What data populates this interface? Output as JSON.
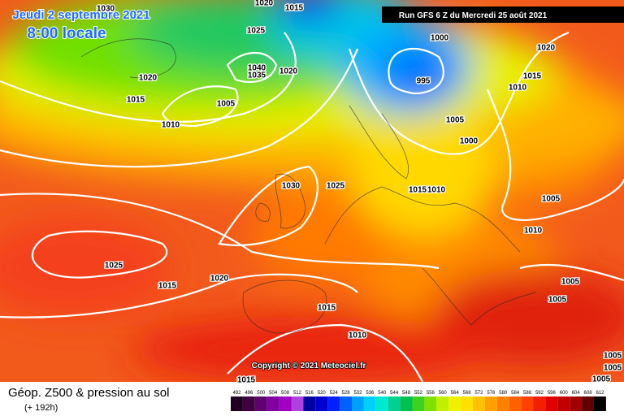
{
  "header": {
    "date": "Jeudi 2 septembre 2021",
    "time": "8:00 locale",
    "run": "Run GFS 6 Z du Mercredi 25 août 2021"
  },
  "isobar_labels": [
    "1030",
    "1020",
    "1015",
    "1025",
    "1040",
    "1035",
    "1020",
    "1020",
    "1015",
    "1005",
    "1010",
    "1000",
    "995",
    "1005",
    "1000",
    "1020",
    "1015",
    "1010",
    "1030",
    "1025",
    "1015",
    "1010",
    "1005",
    "1010",
    "1025",
    "1015",
    "1020",
    "1015",
    "1005",
    "1005",
    "1010",
    "1015",
    "1005",
    "1005",
    "1005"
  ],
  "copyright": "Copyright © 2021 Meteociel.fr",
  "footer": {
    "title": "Géop. Z500 & pression au sol",
    "subtitle": "(+ 192h)"
  },
  "legend": [
    {
      "value": 492,
      "color": "#200020"
    },
    {
      "value": 496,
      "color": "#400040"
    },
    {
      "value": 500,
      "color": "#600070"
    },
    {
      "value": 504,
      "color": "#8000a0"
    },
    {
      "value": 508,
      "color": "#a000c0"
    },
    {
      "value": 512,
      "color": "#b040e0"
    },
    {
      "value": 516,
      "color": "#0000a0"
    },
    {
      "value": 520,
      "color": "#0000d0"
    },
    {
      "value": 524,
      "color": "#0020ff"
    },
    {
      "value": 528,
      "color": "#0060ff"
    },
    {
      "value": 532,
      "color": "#00a0ff"
    },
    {
      "value": 536,
      "color": "#00d0ff"
    },
    {
      "value": 540,
      "color": "#00e8d0"
    },
    {
      "value": 544,
      "color": "#00d090"
    },
    {
      "value": 548,
      "color": "#00c050"
    },
    {
      "value": 552,
      "color": "#40d020"
    },
    {
      "value": 556,
      "color": "#80e000"
    },
    {
      "value": 560,
      "color": "#c0f000"
    },
    {
      "value": 564,
      "color": "#f0f000"
    },
    {
      "value": 568,
      "color": "#ffe000"
    },
    {
      "value": 572,
      "color": "#ffc000"
    },
    {
      "value": 576,
      "color": "#ffa000"
    },
    {
      "value": 580,
      "color": "#ff8000"
    },
    {
      "value": 584,
      "color": "#ff6000"
    },
    {
      "value": 588,
      "color": "#ff4000"
    },
    {
      "value": 592,
      "color": "#f02000"
    },
    {
      "value": 596,
      "color": "#e00000"
    },
    {
      "value": 600,
      "color": "#c00000"
    },
    {
      "value": 604,
      "color": "#a00000"
    },
    {
      "value": 608,
      "color": "#600000"
    },
    {
      "value": 612,
      "color": "#000000"
    }
  ]
}
